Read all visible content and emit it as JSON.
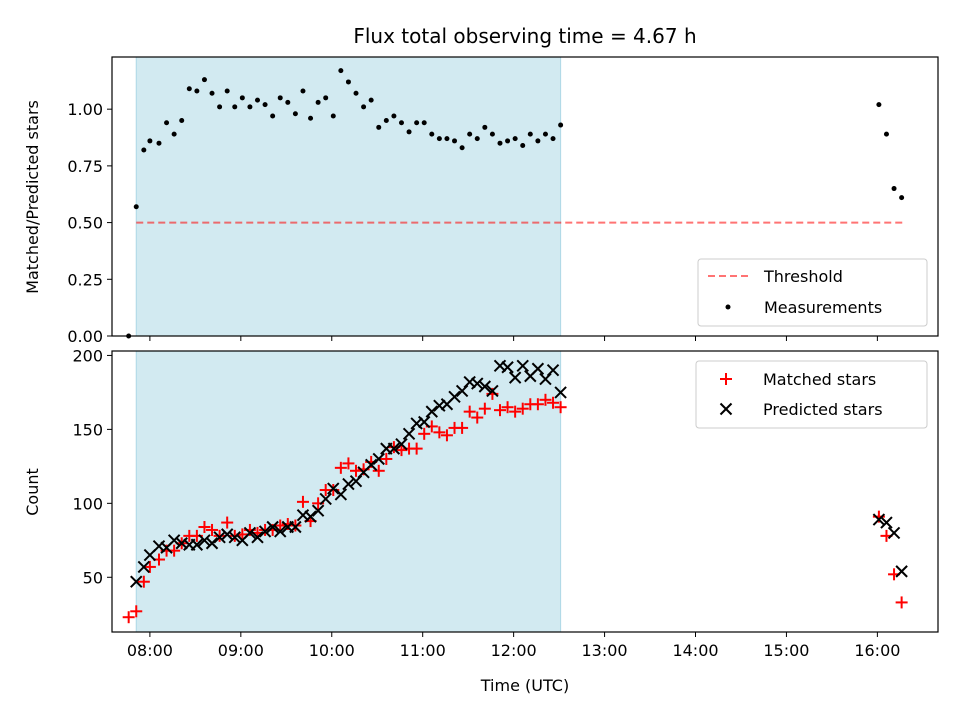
{
  "colors": {
    "shade": "#add8e6",
    "threshold": "#ff0000",
    "measurement": "#000000",
    "matched": "#ff0000",
    "predicted": "#000000"
  },
  "chart_data": [
    {
      "type": "scatter",
      "title": "Flux total observing time = 4.67 h",
      "xlabel": "",
      "ylabel": "Matched/Predicted stars",
      "xlim": [
        "07:35",
        "16:40"
      ],
      "ylim": [
        0,
        1.23
      ],
      "yticks": [
        "0.00",
        "0.25",
        "0.50",
        "0.75",
        "1.00"
      ],
      "shaded_span": [
        "07:51",
        "12:31"
      ],
      "legend_position": "lower-right",
      "legend": [
        "Threshold",
        "Measurements"
      ],
      "threshold": {
        "name": "Threshold",
        "value": 0.5,
        "x_range": [
          "07:51",
          "16:17"
        ],
        "style": "dashed"
      },
      "series": [
        {
          "name": "Measurements",
          "marker": "dot",
          "points": [
            [
              "07:46",
              0.0
            ],
            [
              "07:51",
              0.57
            ],
            [
              "07:56",
              0.82
            ],
            [
              "08:00",
              0.86
            ],
            [
              "08:06",
              0.85
            ],
            [
              "08:11",
              0.94
            ],
            [
              "08:16",
              0.89
            ],
            [
              "08:21",
              0.95
            ],
            [
              "08:26",
              1.09
            ],
            [
              "08:31",
              1.08
            ],
            [
              "08:36",
              1.13
            ],
            [
              "08:41",
              1.07
            ],
            [
              "08:46",
              1.01
            ],
            [
              "08:51",
              1.08
            ],
            [
              "08:56",
              1.01
            ],
            [
              "09:01",
              1.05
            ],
            [
              "09:06",
              1.01
            ],
            [
              "09:11",
              1.04
            ],
            [
              "09:16",
              1.02
            ],
            [
              "09:21",
              0.97
            ],
            [
              "09:26",
              1.05
            ],
            [
              "09:31",
              1.03
            ],
            [
              "09:36",
              0.98
            ],
            [
              "09:41",
              1.08
            ],
            [
              "09:46",
              0.96
            ],
            [
              "09:51",
              1.03
            ],
            [
              "09:56",
              1.05
            ],
            [
              "10:01",
              0.97
            ],
            [
              "10:06",
              1.17
            ],
            [
              "10:11",
              1.12
            ],
            [
              "10:16",
              1.07
            ],
            [
              "10:21",
              1.01
            ],
            [
              "10:26",
              1.04
            ],
            [
              "10:31",
              0.92
            ],
            [
              "10:36",
              0.95
            ],
            [
              "10:41",
              0.97
            ],
            [
              "10:46",
              0.94
            ],
            [
              "10:51",
              0.9
            ],
            [
              "10:56",
              0.94
            ],
            [
              "11:01",
              0.94
            ],
            [
              "11:06",
              0.89
            ],
            [
              "11:11",
              0.87
            ],
            [
              "11:16",
              0.87
            ],
            [
              "11:21",
              0.86
            ],
            [
              "11:26",
              0.83
            ],
            [
              "11:31",
              0.89
            ],
            [
              "11:36",
              0.87
            ],
            [
              "11:41",
              0.92
            ],
            [
              "11:46",
              0.89
            ],
            [
              "11:51",
              0.85
            ],
            [
              "11:56",
              0.86
            ],
            [
              "12:01",
              0.87
            ],
            [
              "12:06",
              0.84
            ],
            [
              "12:11",
              0.89
            ],
            [
              "12:16",
              0.86
            ],
            [
              "12:21",
              0.89
            ],
            [
              "12:26",
              0.87
            ],
            [
              "12:31",
              0.93
            ],
            [
              "16:01",
              1.02
            ],
            [
              "16:06",
              0.89
            ],
            [
              "16:11",
              0.65
            ],
            [
              "16:16",
              0.61
            ]
          ]
        }
      ]
    },
    {
      "type": "scatter",
      "title": "",
      "xlabel": "Time (UTC)",
      "ylabel": "Count",
      "xlim": [
        "07:35",
        "16:40"
      ],
      "ylim": [
        13,
        203
      ],
      "xticks": [
        "08:00",
        "09:00",
        "10:00",
        "11:00",
        "12:00",
        "13:00",
        "14:00",
        "15:00",
        "16:00"
      ],
      "yticks": [
        "50",
        "100",
        "150",
        "200"
      ],
      "shaded_span": [
        "07:51",
        "12:31"
      ],
      "legend_position": "upper-right",
      "legend": [
        "Matched stars",
        "Predicted stars"
      ],
      "series": [
        {
          "name": "Matched stars",
          "marker": "plus",
          "points": [
            [
              "07:46",
              23
            ],
            [
              "07:51",
              27
            ],
            [
              "07:56",
              47
            ],
            [
              "08:00",
              57
            ],
            [
              "08:06",
              62
            ],
            [
              "08:11",
              68
            ],
            [
              "08:16",
              68
            ],
            [
              "08:21",
              73
            ],
            [
              "08:26",
              78
            ],
            [
              "08:31",
              78
            ],
            [
              "08:36",
              84
            ],
            [
              "08:41",
              82
            ],
            [
              "08:46",
              78
            ],
            [
              "08:51",
              87
            ],
            [
              "08:56",
              78
            ],
            [
              "09:01",
              79
            ],
            [
              "09:06",
              82
            ],
            [
              "09:11",
              80
            ],
            [
              "09:16",
              82
            ],
            [
              "09:21",
              82
            ],
            [
              "09:26",
              85
            ],
            [
              "09:31",
              86
            ],
            [
              "09:36",
              85
            ],
            [
              "09:41",
              101
            ],
            [
              "09:46",
              88
            ],
            [
              "09:51",
              100
            ],
            [
              "09:56",
              109
            ],
            [
              "10:01",
              109
            ],
            [
              "10:06",
              124
            ],
            [
              "10:11",
              127
            ],
            [
              "10:16",
              122
            ],
            [
              "10:21",
              123
            ],
            [
              "10:26",
              128
            ],
            [
              "10:31",
              122
            ],
            [
              "10:36",
              130
            ],
            [
              "10:41",
              138
            ],
            [
              "10:46",
              136
            ],
            [
              "10:51",
              137
            ],
            [
              "10:56",
              137
            ],
            [
              "11:01",
              147
            ],
            [
              "11:06",
              152
            ],
            [
              "11:11",
              148
            ],
            [
              "11:16",
              146
            ],
            [
              "11:21",
              151
            ],
            [
              "11:26",
              151
            ],
            [
              "11:31",
              162
            ],
            [
              "11:36",
              158
            ],
            [
              "11:41",
              164
            ],
            [
              "11:46",
              174
            ],
            [
              "11:51",
              163
            ],
            [
              "11:56",
              165
            ],
            [
              "12:01",
              162
            ],
            [
              "12:06",
              164
            ],
            [
              "12:11",
              167
            ],
            [
              "12:16",
              167
            ],
            [
              "12:21",
              170
            ],
            [
              "12:26",
              168
            ],
            [
              "12:31",
              165
            ],
            [
              "16:01",
              91
            ],
            [
              "16:06",
              78
            ],
            [
              "16:11",
              52
            ],
            [
              "16:16",
              33
            ]
          ]
        },
        {
          "name": "Predicted stars",
          "marker": "x",
          "points": [
            [
              "07:51",
              47
            ],
            [
              "07:56",
              57
            ],
            [
              "08:00",
              65
            ],
            [
              "08:06",
              71
            ],
            [
              "08:11",
              70
            ],
            [
              "08:16",
              75
            ],
            [
              "08:21",
              73
            ],
            [
              "08:26",
              72
            ],
            [
              "08:31",
              72
            ],
            [
              "08:36",
              75
            ],
            [
              "08:41",
              73
            ],
            [
              "08:46",
              77
            ],
            [
              "08:51",
              79
            ],
            [
              "08:56",
              77
            ],
            [
              "09:01",
              75
            ],
            [
              "09:06",
              80
            ],
            [
              "09:11",
              77
            ],
            [
              "09:16",
              81
            ],
            [
              "09:21",
              84
            ],
            [
              "09:26",
              81
            ],
            [
              "09:31",
              84
            ],
            [
              "09:36",
              84
            ],
            [
              "09:41",
              92
            ],
            [
              "09:46",
              91
            ],
            [
              "09:51",
              95
            ],
            [
              "09:56",
              103
            ],
            [
              "10:01",
              110
            ],
            [
              "10:06",
              106
            ],
            [
              "10:11",
              113
            ],
            [
              "10:16",
              115
            ],
            [
              "10:21",
              121
            ],
            [
              "10:26",
              126
            ],
            [
              "10:31",
              130
            ],
            [
              "10:36",
              137
            ],
            [
              "10:41",
              137
            ],
            [
              "10:46",
              140
            ],
            [
              "10:51",
              147
            ],
            [
              "10:56",
              154
            ],
            [
              "11:01",
              155
            ],
            [
              "11:06",
              162
            ],
            [
              "11:11",
              166
            ],
            [
              "11:16",
              167
            ],
            [
              "11:21",
              172
            ],
            [
              "11:26",
              176
            ],
            [
              "11:31",
              182
            ],
            [
              "11:36",
              181
            ],
            [
              "11:41",
              179
            ],
            [
              "11:46",
              176
            ],
            [
              "11:51",
              193
            ],
            [
              "11:56",
              192
            ],
            [
              "12:01",
              185
            ],
            [
              "12:06",
              193
            ],
            [
              "12:11",
              186
            ],
            [
              "12:16",
              191
            ],
            [
              "12:21",
              184
            ],
            [
              "12:26",
              190
            ],
            [
              "12:31",
              175
            ],
            [
              "16:01",
              89
            ],
            [
              "16:06",
              87
            ],
            [
              "16:11",
              80
            ],
            [
              "16:16",
              54
            ]
          ]
        }
      ]
    }
  ]
}
